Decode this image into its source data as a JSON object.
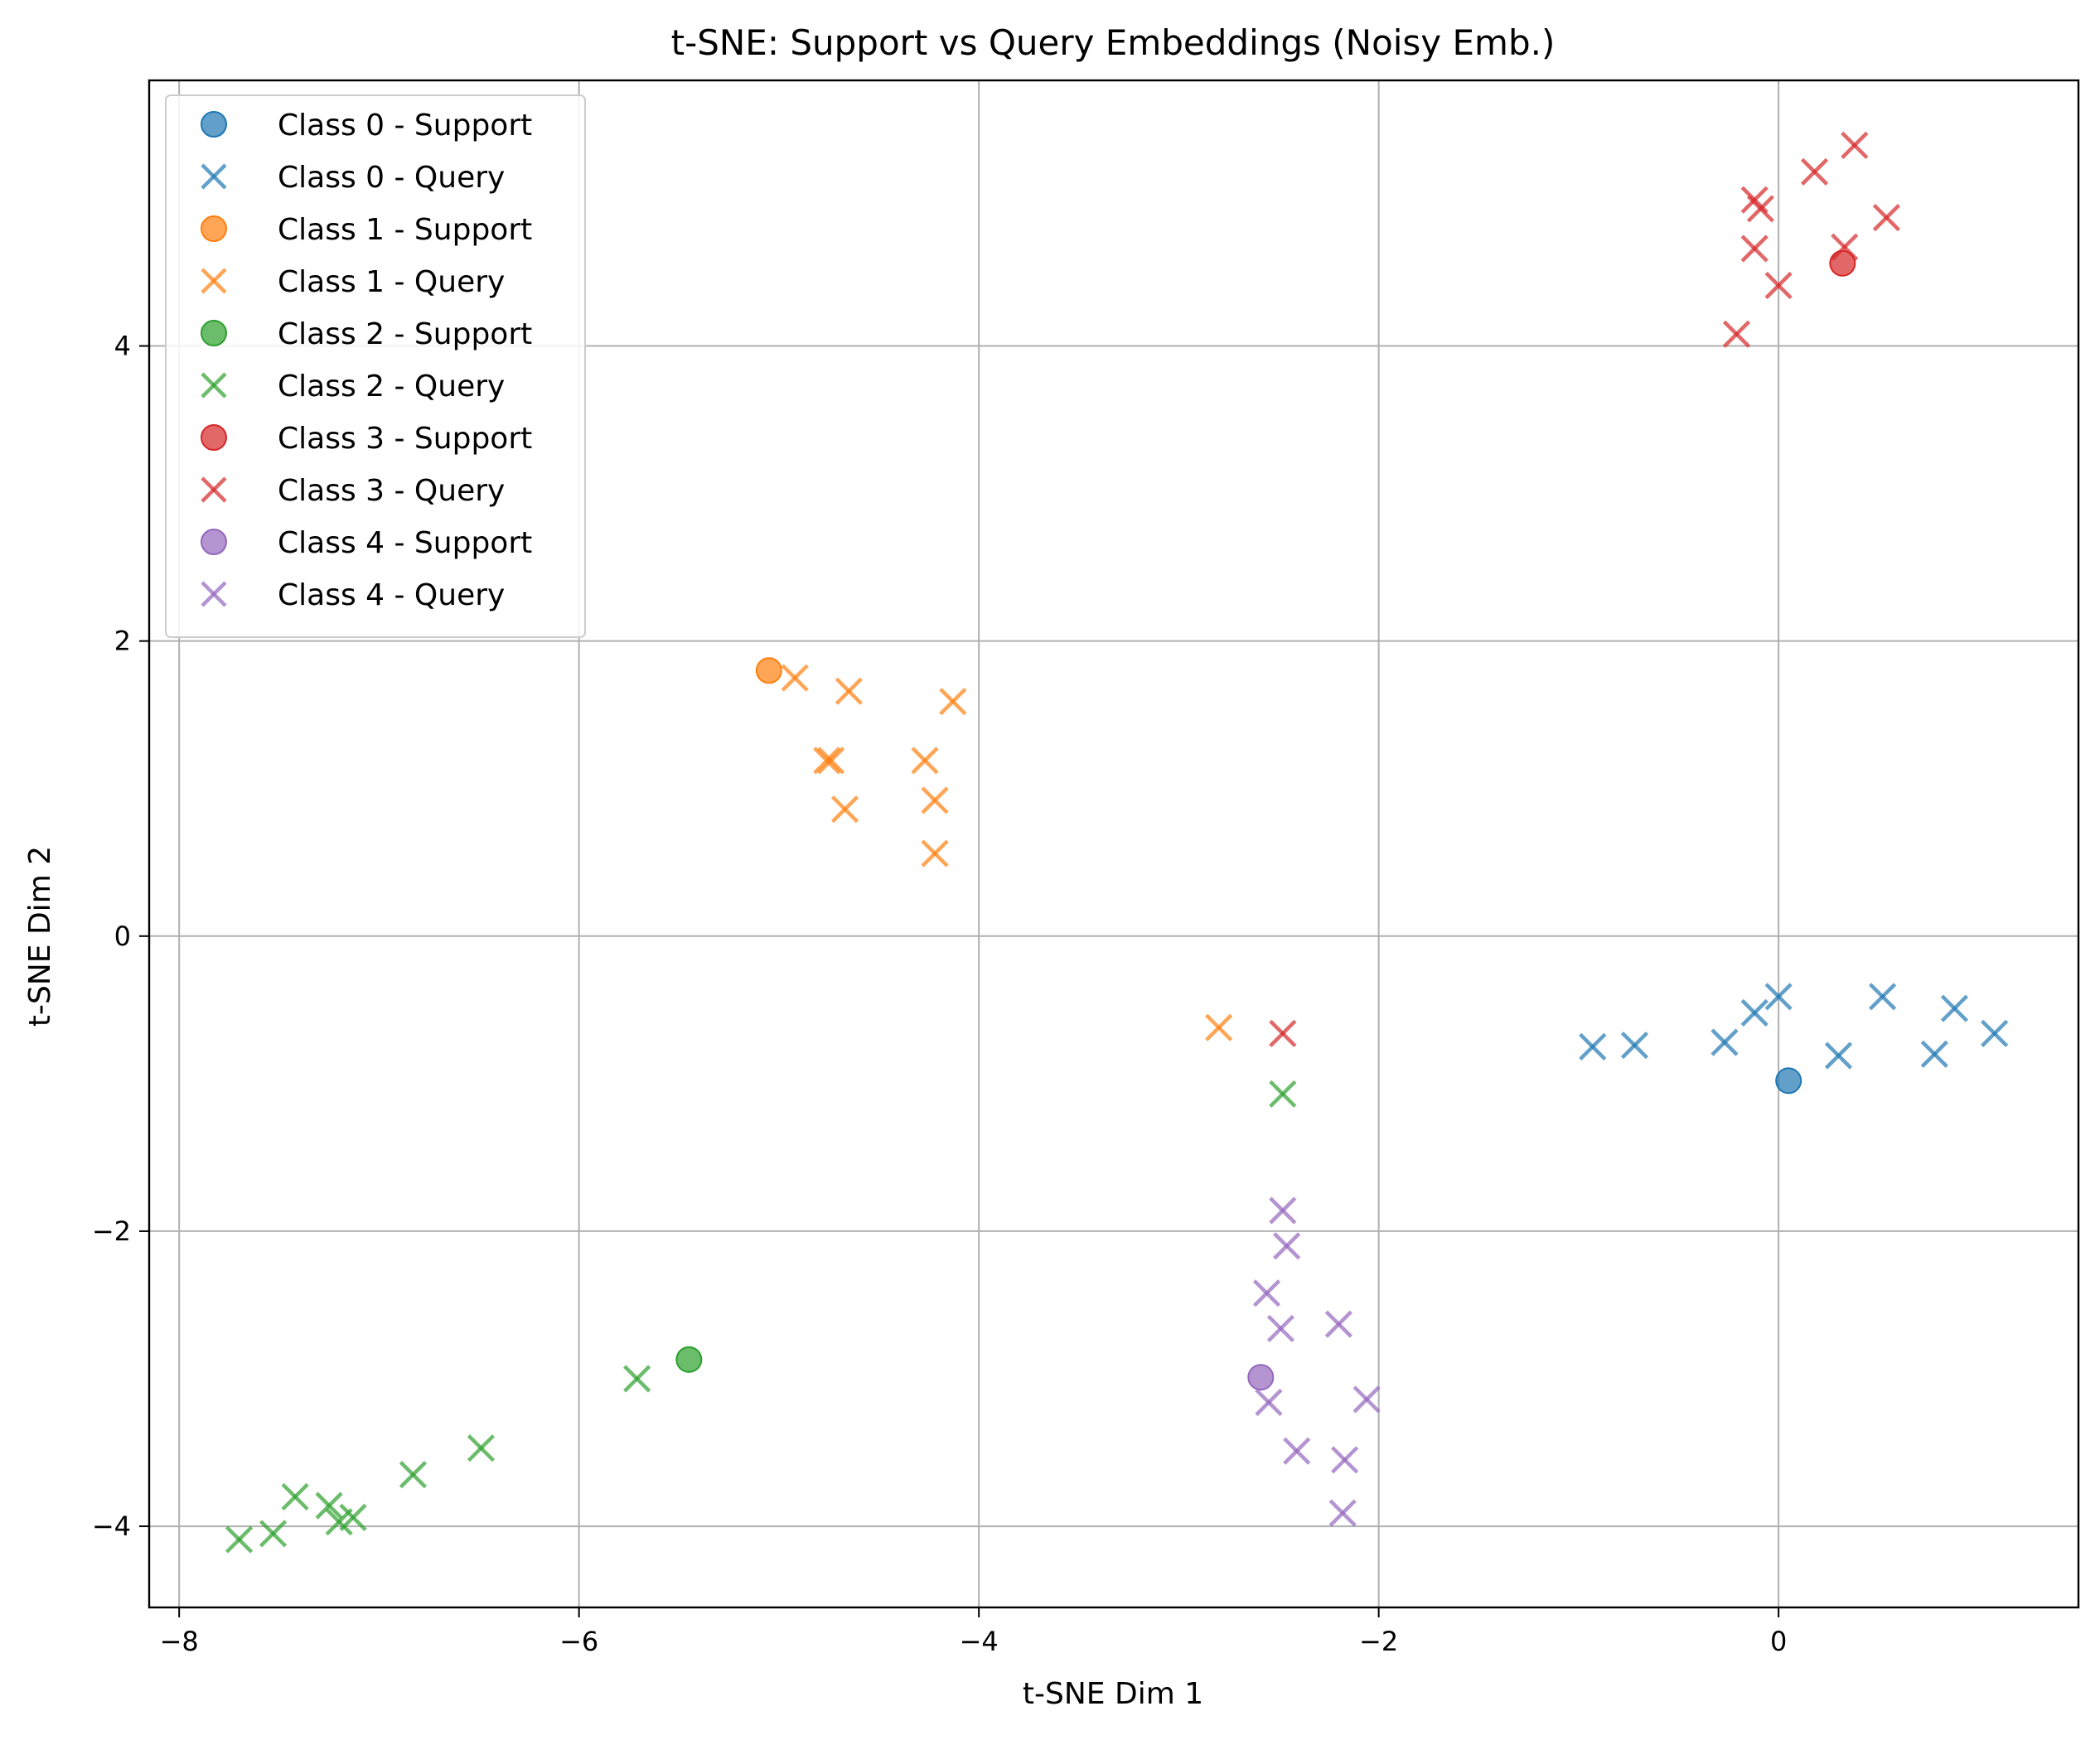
{
  "chart_data": {
    "type": "scatter",
    "title": "t-SNE: Support vs Query Embeddings (Noisy Emb.)",
    "xlabel": "t-SNE Dim 1",
    "ylabel": "t-SNE Dim 2",
    "xlim": [
      -8.15,
      1.5
    ],
    "ylim": [
      -4.55,
      5.8
    ],
    "xticks": [
      -8,
      -6,
      -4,
      -2,
      0
    ],
    "yticks": [
      -4,
      -2,
      0,
      2,
      4
    ],
    "xtick_labels": [
      "−8",
      "−6",
      "−4",
      "−2",
      "0"
    ],
    "ytick_labels": [
      "−4",
      "−2",
      "0",
      "2",
      "4"
    ],
    "grid": true,
    "legend_position": "top-left",
    "series": [
      {
        "name": "Class 0 - Support",
        "marker": "circle",
        "color": "#1f77b4",
        "points": [
          [
            0.05,
            -0.98
          ]
        ]
      },
      {
        "name": "Class 0 - Query",
        "marker": "x",
        "color": "#1f77b4",
        "points": [
          [
            -0.93,
            -0.75
          ],
          [
            -0.72,
            -0.74
          ],
          [
            -0.27,
            -0.72
          ],
          [
            -0.12,
            -0.52
          ],
          [
            0.0,
            -0.41
          ],
          [
            0.3,
            -0.81
          ],
          [
            0.52,
            -0.41
          ],
          [
            0.78,
            -0.8
          ],
          [
            0.88,
            -0.49
          ],
          [
            1.08,
            -0.66
          ]
        ]
      },
      {
        "name": "Class 1 - Support",
        "marker": "circle",
        "color": "#ff7f0e",
        "points": [
          [
            -5.05,
            1.8
          ]
        ]
      },
      {
        "name": "Class 1 - Query",
        "marker": "x",
        "color": "#ff7f0e",
        "points": [
          [
            -4.92,
            1.75
          ],
          [
            -4.65,
            1.66
          ],
          [
            -4.13,
            1.59
          ],
          [
            -4.76,
            1.19
          ],
          [
            -4.74,
            1.19
          ],
          [
            -4.27,
            1.19
          ],
          [
            -4.67,
            0.86
          ],
          [
            -4.22,
            0.92
          ],
          [
            -4.22,
            0.56
          ],
          [
            -2.8,
            -0.62
          ]
        ]
      },
      {
        "name": "Class 2 - Support",
        "marker": "circle",
        "color": "#2ca02c",
        "points": [
          [
            -5.45,
            -2.87
          ]
        ]
      },
      {
        "name": "Class 2 - Query",
        "marker": "x",
        "color": "#2ca02c",
        "points": [
          [
            -2.48,
            -1.07
          ],
          [
            -5.71,
            -3.0
          ],
          [
            -6.49,
            -3.47
          ],
          [
            -6.83,
            -3.65
          ],
          [
            -7.42,
            -3.8
          ],
          [
            -7.25,
            -3.86
          ],
          [
            -7.13,
            -3.94
          ],
          [
            -7.2,
            -3.97
          ],
          [
            -7.53,
            -4.05
          ],
          [
            -7.7,
            -4.09
          ]
        ]
      },
      {
        "name": "Class 3 - Support",
        "marker": "circle",
        "color": "#d62728",
        "points": [
          [
            0.32,
            4.56
          ]
        ]
      },
      {
        "name": "Class 3 - Query",
        "marker": "x",
        "color": "#d62728",
        "points": [
          [
            0.38,
            5.36
          ],
          [
            0.18,
            5.18
          ],
          [
            -0.12,
            4.99
          ],
          [
            -0.09,
            4.93
          ],
          [
            0.54,
            4.87
          ],
          [
            -0.12,
            4.66
          ],
          [
            0.33,
            4.67
          ],
          [
            0.0,
            4.41
          ],
          [
            -0.21,
            4.08
          ],
          [
            -2.48,
            -0.66
          ]
        ]
      },
      {
        "name": "Class 4 - Support",
        "marker": "circle",
        "color": "#9467bd",
        "points": [
          [
            -2.59,
            -2.99
          ]
        ]
      },
      {
        "name": "Class 4 - Query",
        "marker": "x",
        "color": "#9467bd",
        "points": [
          [
            -2.48,
            -1.86
          ],
          [
            -2.46,
            -2.1
          ],
          [
            -2.56,
            -2.42
          ],
          [
            -2.49,
            -2.66
          ],
          [
            -2.2,
            -2.63
          ],
          [
            -2.55,
            -3.16
          ],
          [
            -2.06,
            -3.14
          ],
          [
            -2.41,
            -3.49
          ],
          [
            -2.17,
            -3.55
          ],
          [
            -2.18,
            -3.91
          ]
        ]
      }
    ]
  }
}
